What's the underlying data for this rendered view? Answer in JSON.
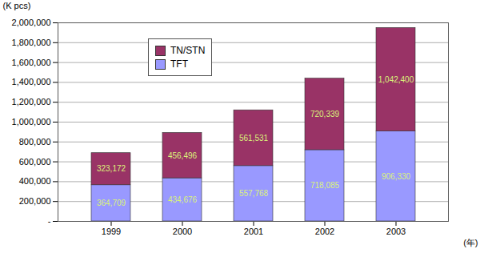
{
  "chart_data": {
    "type": "bar",
    "stacked": true,
    "data_labels": true,
    "grid": true,
    "legend": "top-left",
    "y_label": "(K pcs)",
    "x_label": "(年)",
    "categories": [
      "1999",
      "2000",
      "2001",
      "2002",
      "2003"
    ],
    "series": [
      {
        "name": "TN/STN",
        "color": "#993366",
        "values": [
          323172,
          456496,
          561531,
          720339,
          1042400
        ],
        "value_labels": [
          "323,172",
          "456,496",
          "561,531",
          "720,339",
          "1,042,400"
        ]
      },
      {
        "name": "TFT",
        "color": "#9999ff",
        "values": [
          364709,
          434676,
          557768,
          718085,
          906330
        ],
        "value_labels": [
          "364,709",
          "434,676",
          "557,768",
          "718,085",
          "906,330"
        ]
      }
    ],
    "ylim": [
      0,
      2000000
    ],
    "yticks": [
      {
        "value": 0,
        "label": "-"
      },
      {
        "value": 200000,
        "label": "200,000"
      },
      {
        "value": 400000,
        "label": "400,000"
      },
      {
        "value": 600000,
        "label": "600,000"
      },
      {
        "value": 800000,
        "label": "800,000"
      },
      {
        "value": 1000000,
        "label": "1,000,000"
      },
      {
        "value": 1200000,
        "label": "1,200,000"
      },
      {
        "value": 1400000,
        "label": "1,400,000"
      },
      {
        "value": 1600000,
        "label": "1,600,000"
      },
      {
        "value": 1800000,
        "label": "1,800,000"
      },
      {
        "value": 2000000,
        "label": "2,000,000"
      }
    ]
  }
}
